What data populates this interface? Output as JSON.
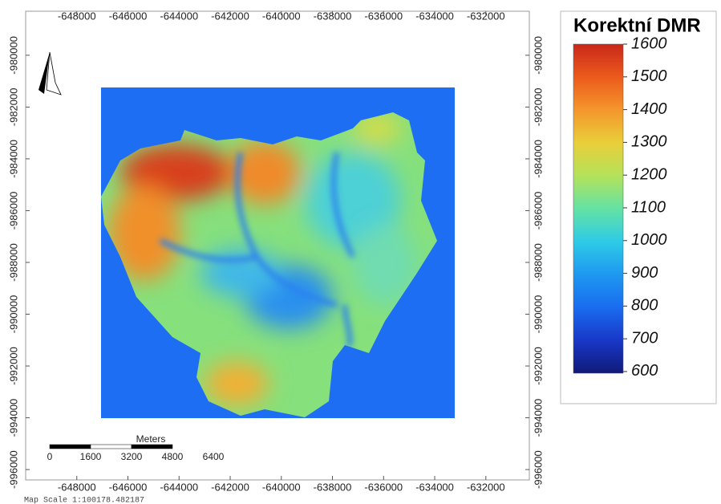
{
  "map": {
    "xticks": [
      -648000,
      -646000,
      -644000,
      -642000,
      -640000,
      -638000,
      -636000,
      -634000,
      -632000
    ],
    "xlim": [
      -650000,
      -630300
    ],
    "yticks": [
      -980000,
      -982000,
      -984000,
      -986000,
      -988000,
      -990000,
      -992000,
      -994000,
      -996000
    ],
    "ylim": [
      -978300,
      -996400
    ],
    "legend": {
      "title": "Korektní DMR",
      "ticks": [
        1600,
        1500,
        1400,
        1300,
        1200,
        1100,
        1000,
        900,
        800,
        700,
        600
      ],
      "range": [
        595,
        1600
      ]
    },
    "scale_bar": {
      "unit": "Meters",
      "ticks": [
        0,
        1600,
        3200,
        4800,
        6400
      ]
    },
    "map_scale": "Map Scale 1:100178.482187"
  }
}
